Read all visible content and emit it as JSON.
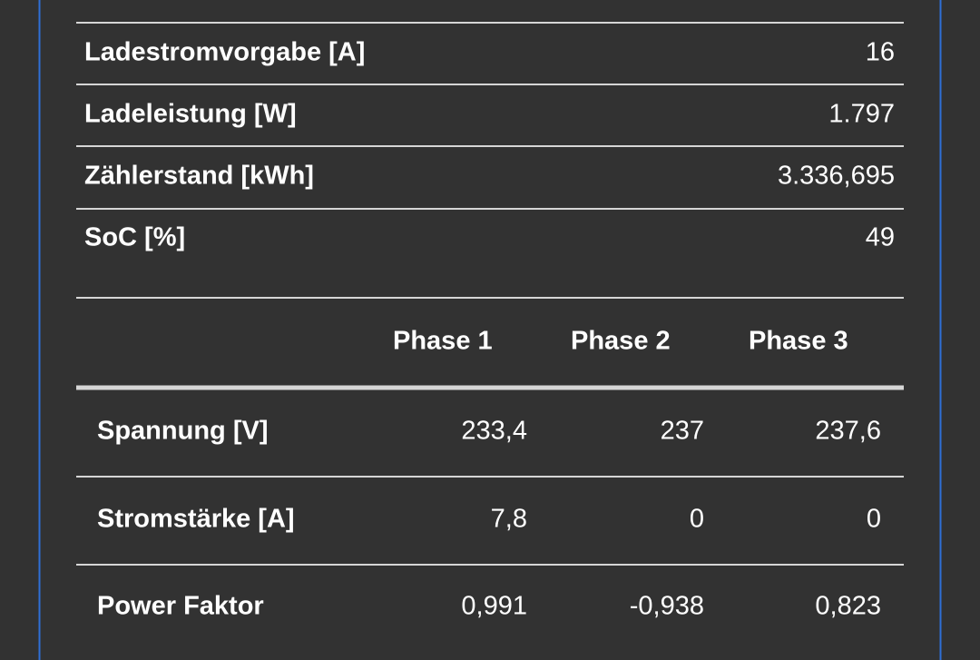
{
  "summary": {
    "rows": [
      {
        "label": "Ladestromvorgabe [A]",
        "value": "16"
      },
      {
        "label": "Ladeleistung [W]",
        "value": "1.797"
      },
      {
        "label": "Zählerstand [kWh]",
        "value": "3.336,695"
      },
      {
        "label": "SoC [%]",
        "value": "49"
      }
    ]
  },
  "phases": {
    "header": [
      "Phase 1",
      "Phase 2",
      "Phase 3"
    ],
    "rows": [
      {
        "label": "Spannung [V]",
        "values": [
          "233,4",
          "237",
          "237,6"
        ]
      },
      {
        "label": "Stromstärke [A]",
        "values": [
          "7,8",
          "0",
          "0"
        ]
      },
      {
        "label": "Power Faktor",
        "values": [
          "0,991",
          "-0,938",
          "0,823"
        ]
      }
    ]
  }
}
